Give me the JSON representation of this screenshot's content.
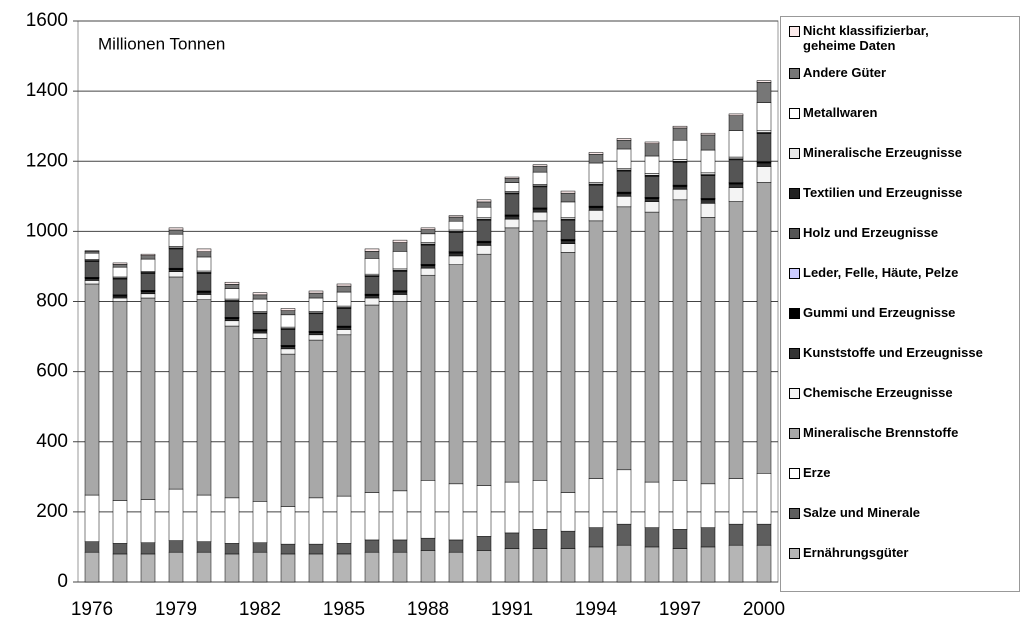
{
  "chart_data": {
    "type": "stacked-bar",
    "annotation": "Millionen Tonnen",
    "categories": [
      "1976",
      null,
      null,
      "1979",
      null,
      null,
      "1982",
      null,
      null,
      "1985",
      null,
      null,
      "1988",
      null,
      null,
      "1991",
      null,
      null,
      "1994",
      null,
      null,
      "1997",
      null,
      null,
      "2000"
    ],
    "ylim": [
      0,
      1600
    ],
    "yticks": [
      0,
      200,
      400,
      600,
      800,
      1000,
      1200,
      1400,
      1600
    ],
    "grid": true,
    "series": [
      {
        "name": "Ernährungsgüter",
        "color": "#b5b5b5",
        "values": [
          85,
          80,
          80,
          85,
          85,
          80,
          85,
          80,
          80,
          80,
          85,
          85,
          90,
          85,
          90,
          95,
          95,
          95,
          100,
          105,
          100,
          95,
          100,
          105,
          105
        ]
      },
      {
        "name": "Salze und Minerale",
        "color": "#5e5e5e",
        "values": [
          30,
          30,
          32,
          33,
          30,
          30,
          27,
          28,
          28,
          30,
          35,
          35,
          35,
          35,
          40,
          45,
          55,
          50,
          55,
          60,
          55,
          55,
          55,
          60,
          60
        ]
      },
      {
        "name": "Erze",
        "color": "#ffffff",
        "values": [
          133,
          122,
          123,
          147,
          133,
          130,
          118,
          107,
          132,
          135,
          135,
          140,
          165,
          160,
          145,
          145,
          140,
          110,
          140,
          155,
          130,
          140,
          125,
          130,
          145
        ]
      },
      {
        "name": "Mineralische Brennstoffe",
        "color": "#a8a8a8",
        "values": [
          602,
          568,
          575,
          605,
          557,
          490,
          465,
          435,
          450,
          460,
          535,
          540,
          585,
          625,
          660,
          725,
          740,
          685,
          735,
          750,
          770,
          800,
          760,
          790,
          830
        ]
      },
      {
        "name": "Chemische Erzeugnisse",
        "color": "#f4f4f4",
        "values": [
          10,
          10,
          12,
          15,
          15,
          15,
          15,
          15,
          15,
          15,
          20,
          20,
          20,
          25,
          25,
          25,
          25,
          25,
          30,
          30,
          30,
          30,
          40,
          40,
          45
        ]
      },
      {
        "name": "Kunststoffe und Erzeugnisse",
        "color": "#333333",
        "values": [
          5,
          5,
          6,
          6,
          6,
          6,
          6,
          6,
          6,
          6,
          7,
          7,
          7,
          8,
          8,
          8,
          8,
          8,
          8,
          8,
          8,
          8,
          10,
          10,
          10
        ]
      },
      {
        "name": "Gummi und Erzeugnisse",
        "color": "#000000",
        "values": [
          3,
          3,
          3,
          3,
          3,
          3,
          3,
          3,
          3,
          3,
          3,
          3,
          3,
          3,
          3,
          3,
          3,
          3,
          3,
          3,
          3,
          3,
          3,
          3,
          3
        ]
      },
      {
        "name": "Leder, Felle, Häute, Pelze",
        "color": "#ccccff",
        "values": [
          1,
          1,
          1,
          1,
          1,
          1,
          1,
          1,
          1,
          1,
          1,
          1,
          1,
          1,
          1,
          1,
          1,
          1,
          1,
          1,
          1,
          1,
          1,
          1,
          1
        ]
      },
      {
        "name": "Holz und Erzeugnisse",
        "color": "#555555",
        "values": [
          45,
          45,
          48,
          55,
          50,
          45,
          45,
          45,
          50,
          50,
          50,
          55,
          55,
          55,
          60,
          60,
          60,
          55,
          60,
          60,
          60,
          65,
          65,
          65,
          80
        ]
      },
      {
        "name": "Textilien und Erzeugnisse",
        "color": "#222222",
        "values": [
          3,
          3,
          3,
          3,
          3,
          3,
          3,
          3,
          3,
          3,
          3,
          3,
          3,
          3,
          3,
          3,
          3,
          3,
          3,
          3,
          3,
          3,
          3,
          3,
          3
        ]
      },
      {
        "name": "Mineralische Erzeugnisse",
        "color": "#e8e8e8",
        "values": [
          3,
          3,
          3,
          4,
          4,
          4,
          4,
          4,
          4,
          4,
          4,
          4,
          4,
          4,
          4,
          4,
          4,
          4,
          5,
          5,
          5,
          5,
          5,
          5,
          5
        ]
      },
      {
        "name": "Metallwaren",
        "color": "#ffffff",
        "values": [
          18,
          28,
          35,
          35,
          40,
          30,
          35,
          35,
          38,
          40,
          45,
          50,
          25,
          25,
          30,
          25,
          35,
          45,
          55,
          55,
          50,
          55,
          65,
          75,
          80
        ]
      },
      {
        "name": "Andere Güter",
        "color": "#777777",
        "values": [
          5,
          8,
          10,
          12,
          15,
          12,
          12,
          12,
          14,
          17,
          20,
          25,
          12,
          12,
          15,
          12,
          17,
          25,
          25,
          25,
          35,
          35,
          43,
          43,
          58
        ]
      },
      {
        "name": "Nicht klassifizierbar, geheime Daten",
        "color": "#fbeaea",
        "values": [
          2,
          4,
          4,
          6,
          8,
          6,
          6,
          6,
          6,
          6,
          7,
          7,
          5,
          4,
          6,
          4,
          4,
          6,
          5,
          5,
          5,
          5,
          5,
          5,
          5
        ]
      }
    ]
  }
}
